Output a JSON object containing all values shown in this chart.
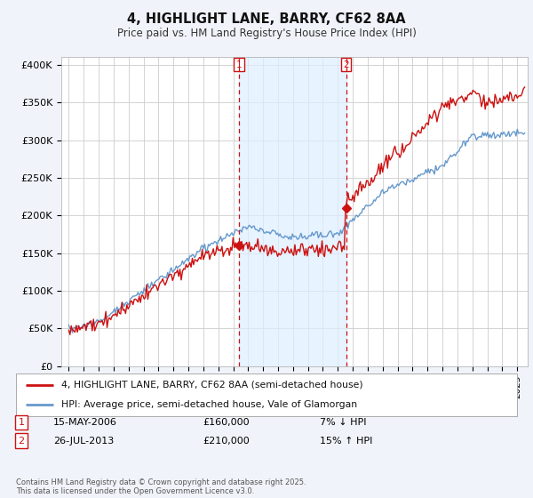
{
  "title": "4, HIGHLIGHT LANE, BARRY, CF62 8AA",
  "subtitle": "Price paid vs. HM Land Registry's House Price Index (HPI)",
  "ylabel_ticks": [
    "£0",
    "£50K",
    "£100K",
    "£150K",
    "£200K",
    "£250K",
    "£300K",
    "£350K",
    "£400K"
  ],
  "ytick_vals": [
    0,
    50000,
    100000,
    150000,
    200000,
    250000,
    300000,
    350000,
    400000
  ],
  "ylim": [
    0,
    410000
  ],
  "xlim_start": 1994.5,
  "xlim_end": 2025.7,
  "line1_color": "#cc1111",
  "line2_color": "#6699cc",
  "vline1_x": 2006.37,
  "vline2_x": 2013.55,
  "vline_color": "#cc1111",
  "shade_color": "#ddeeff",
  "legend1_text": "4, HIGHLIGHT LANE, BARRY, CF62 8AA (semi-detached house)",
  "legend2_text": "HPI: Average price, semi-detached house, Vale of Glamorgan",
  "note1_num": "1",
  "note1_date": "15-MAY-2006",
  "note1_price": "£160,000",
  "note1_pct": "7% ↓ HPI",
  "note2_num": "2",
  "note2_date": "26-JUL-2013",
  "note2_price": "£210,000",
  "note2_pct": "15% ↑ HPI",
  "footer": "Contains HM Land Registry data © Crown copyright and database right 2025.\nThis data is licensed under the Open Government Licence v3.0.",
  "background_color": "#f0f4fa",
  "plot_bg_color": "#ffffff",
  "grid_color": "#cccccc"
}
